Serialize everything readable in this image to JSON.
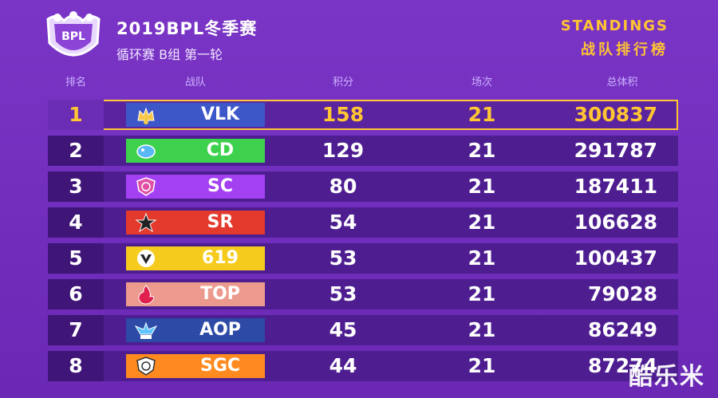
{
  "header": {
    "title": "2019BPL冬季赛",
    "subtitle": "循环赛 B组 第一轮",
    "standings_en": "STANDINGS",
    "standings_cn": "战队排行榜",
    "logo_text": "BPL"
  },
  "columns": {
    "rank": "排名",
    "team": "战队",
    "points": "积分",
    "games": "场次",
    "total": "总体积"
  },
  "colors": {
    "accent": "#ffc533",
    "background": "#6f2bb8",
    "row": "#4e1e91"
  },
  "rows": [
    {
      "rank": "1",
      "team": "VLK",
      "points": "158",
      "games": "21",
      "total": "300837",
      "badge_color": "#3d57c9",
      "icon": "vlk-crown-icon"
    },
    {
      "rank": "2",
      "team": "CD",
      "points": "129",
      "games": "21",
      "total": "291787",
      "badge_color": "#3ed14d",
      "icon": "cd-fish-icon"
    },
    {
      "rank": "3",
      "team": "SC",
      "points": "80",
      "games": "21",
      "total": "187411",
      "badge_color": "#a341f2",
      "icon": "sc-shield-icon"
    },
    {
      "rank": "4",
      "team": "SR",
      "points": "54",
      "games": "21",
      "total": "106628",
      "badge_color": "#e33a2d",
      "icon": "sr-star-icon"
    },
    {
      "rank": "5",
      "team": "619",
      "points": "53",
      "games": "21",
      "total": "100437",
      "badge_color": "#f5cc1d",
      "icon": "619-wing-icon"
    },
    {
      "rank": "6",
      "team": "TOP",
      "points": "53",
      "games": "21",
      "total": "79028",
      "badge_color": "#ec9a8d",
      "icon": "top-flame-icon"
    },
    {
      "rank": "7",
      "team": "AOP",
      "points": "45",
      "games": "21",
      "total": "86249",
      "badge_color": "#2c4aa6",
      "icon": "aop-wings-icon"
    },
    {
      "rank": "8",
      "team": "SGC",
      "points": "44",
      "games": "21",
      "total": "87274",
      "badge_color": "#ff8a1f",
      "icon": "sgc-shield-icon"
    }
  ],
  "watermark": "酷乐米"
}
